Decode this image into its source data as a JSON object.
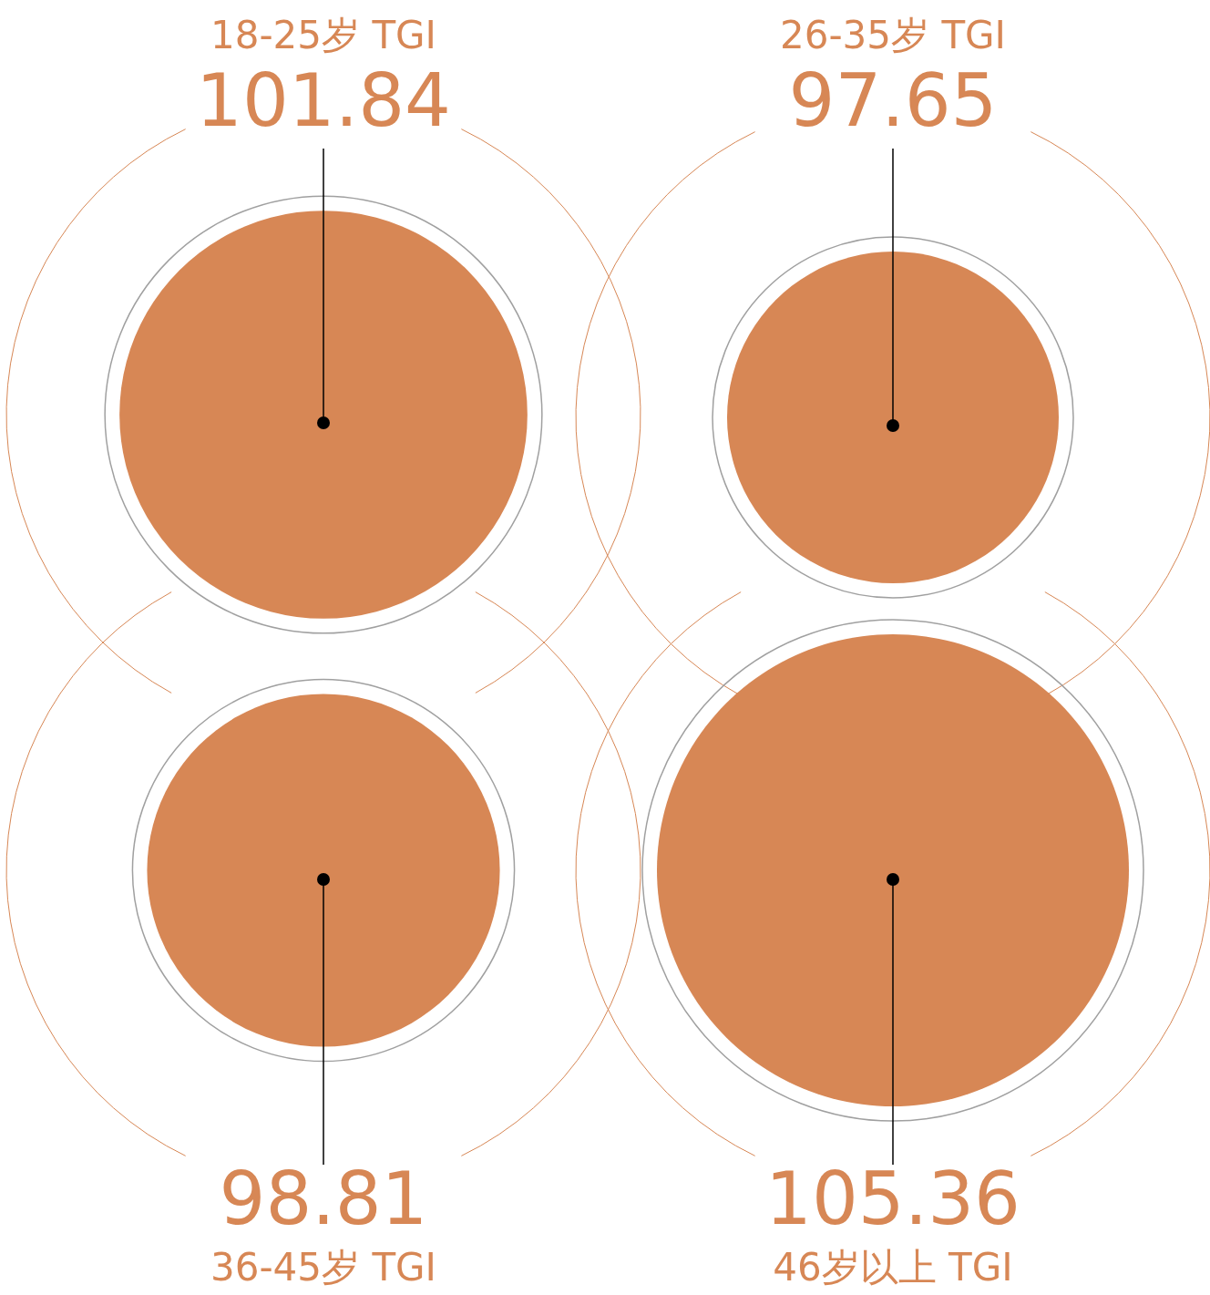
{
  "chart_data": {
    "type": "other",
    "categories": [
      "18-25岁 TGI",
      "26-35岁 TGI",
      "36-45岁 TGI",
      "46岁以上 TGI"
    ],
    "values": [
      101.84,
      97.65,
      98.81,
      105.36
    ],
    "color": "#d78755",
    "data_labels": true
  }
}
